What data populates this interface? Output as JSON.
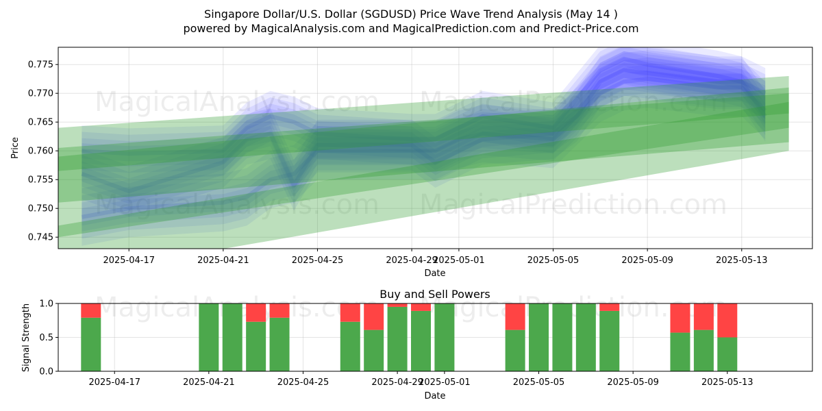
{
  "title_line1": "Singapore Dollar/U.S. Dollar (SGDUSD) Price Wave Trend Analysis (May 14 )",
  "title_line2": "powered by MagicalAnalysis.com and MagicalPrediction.com and Predict-Price.com",
  "watermarks": [
    "MagicalAnalysis.com",
    "MagicalPrediction.com"
  ],
  "colors": {
    "buy": "#4ca84c",
    "sell": "#ff4444",
    "blue_band": "#3333ff",
    "green_band": "#2e9a2e"
  },
  "chart_data": [
    {
      "type": "area",
      "name": "price_wave",
      "xlabel": "Date",
      "ylabel": "Price",
      "xlim": [
        "2025-04-14",
        "2025-05-16"
      ],
      "ylim": [
        0.743,
        0.778
      ],
      "x_ticks": [
        "2025-04-17",
        "2025-04-21",
        "2025-04-25",
        "2025-04-29",
        "2025-05-01",
        "2025-05-05",
        "2025-05-09",
        "2025-05-13"
      ],
      "y_ticks": [
        "0.745",
        "0.750",
        "0.755",
        "0.760",
        "0.765",
        "0.770",
        "0.775"
      ],
      "grid": true,
      "blue_wave_bands": [
        {
          "dates": [
            "2025-04-15",
            "2025-04-17",
            "2025-04-21",
            "2025-04-22",
            "2025-04-23",
            "2025-04-24",
            "2025-04-25",
            "2025-04-29",
            "2025-04-30",
            "2025-05-01",
            "2025-05-02",
            "2025-05-05",
            "2025-05-06",
            "2025-05-07",
            "2025-05-08",
            "2025-05-09",
            "2025-05-12",
            "2025-05-13",
            "2025-05-14"
          ],
          "center": [
            0.7485,
            0.75,
            0.751,
            0.752,
            0.755,
            0.756,
            0.76,
            0.76,
            0.76,
            0.762,
            0.763,
            0.762,
            0.766,
            0.77,
            0.772,
            0.7725,
            0.771,
            0.771,
            0.767
          ],
          "half_width": 0.0025
        },
        {
          "dates": [
            "2025-04-15",
            "2025-04-17",
            "2025-04-21",
            "2025-04-22",
            "2025-04-23",
            "2025-04-24",
            "2025-04-25",
            "2025-04-29",
            "2025-04-30",
            "2025-05-01",
            "2025-05-02",
            "2025-05-05",
            "2025-05-06",
            "2025-05-07",
            "2025-05-08",
            "2025-05-09",
            "2025-05-12",
            "2025-05-13",
            "2025-05-14"
          ],
          "center": [
            0.76,
            0.7595,
            0.76,
            0.764,
            0.766,
            0.765,
            0.763,
            0.762,
            0.762,
            0.764,
            0.766,
            0.764,
            0.769,
            0.774,
            0.776,
            0.775,
            0.773,
            0.772,
            0.77
          ],
          "half_width": 0.0022
        },
        {
          "dates": [
            "2025-04-15",
            "2025-04-17",
            "2025-04-21",
            "2025-04-22",
            "2025-04-23",
            "2025-04-24",
            "2025-04-25",
            "2025-04-29",
            "2025-04-30",
            "2025-05-01",
            "2025-05-02",
            "2025-05-05",
            "2025-05-06",
            "2025-05-07",
            "2025-05-08",
            "2025-05-09",
            "2025-05-12",
            "2025-05-13",
            "2025-05-14"
          ],
          "center": [
            0.756,
            0.753,
            0.758,
            0.762,
            0.763,
            0.754,
            0.761,
            0.761,
            0.758,
            0.76,
            0.762,
            0.763,
            0.766,
            0.772,
            0.774,
            0.7735,
            0.772,
            0.772,
            0.766
          ],
          "half_width": 0.0022
        }
      ],
      "green_trend_bands": [
        {
          "x_start": "2025-04-14",
          "x_end": "2025-05-15",
          "upper": [
            0.764,
            0.773
          ],
          "lower": [
            0.751,
            0.7615
          ]
        },
        {
          "x_start": "2025-04-14",
          "x_end": "2025-05-15",
          "upper": [
            0.759,
            0.771
          ],
          "lower": [
            0.745,
            0.764
          ]
        },
        {
          "x_start": "2025-04-14",
          "x_end": "2025-05-15",
          "upper": [
            0.7605,
            0.77
          ],
          "lower": [
            0.7565,
            0.7665
          ]
        },
        {
          "x_start": "2025-04-14",
          "x_end": "2025-05-15",
          "upper": [
            0.747,
            0.7685
          ],
          "lower": [
            0.738,
            0.76
          ]
        }
      ]
    },
    {
      "type": "bar",
      "name": "buy_sell_powers",
      "title": "Buy and Sell Powers",
      "xlabel": "Date",
      "ylabel": "Signal Strength",
      "ylim": [
        0.0,
        1.0
      ],
      "x_ticks": [
        "2025-04-17",
        "2025-04-21",
        "2025-04-25",
        "2025-04-29",
        "2025-05-01",
        "2025-05-05",
        "2025-05-09",
        "2025-05-13"
      ],
      "y_ticks": [
        "0.0",
        "0.5",
        "1.0"
      ],
      "grid": true,
      "categories": [
        "2025-04-16",
        "2025-04-21",
        "2025-04-22",
        "2025-04-23",
        "2025-04-24",
        "2025-04-27",
        "2025-04-28",
        "2025-04-29",
        "2025-04-30",
        "2025-05-01",
        "2025-05-04",
        "2025-05-05",
        "2025-05-06",
        "2025-05-07",
        "2025-05-08",
        "2025-05-11",
        "2025-05-12",
        "2025-05-13"
      ],
      "series": [
        {
          "name": "buy",
          "values": [
            0.79,
            1.0,
            1.0,
            0.73,
            0.79,
            0.73,
            0.61,
            0.95,
            0.89,
            1.0,
            0.61,
            1.0,
            1.0,
            1.0,
            0.89,
            0.57,
            0.61,
            0.5
          ]
        },
        {
          "name": "sell",
          "values": [
            0.21,
            0.0,
            0.0,
            0.27,
            0.21,
            0.27,
            0.39,
            0.05,
            0.11,
            0.0,
            0.39,
            0.0,
            0.0,
            0.0,
            0.11,
            0.43,
            0.39,
            0.5
          ]
        }
      ]
    }
  ]
}
